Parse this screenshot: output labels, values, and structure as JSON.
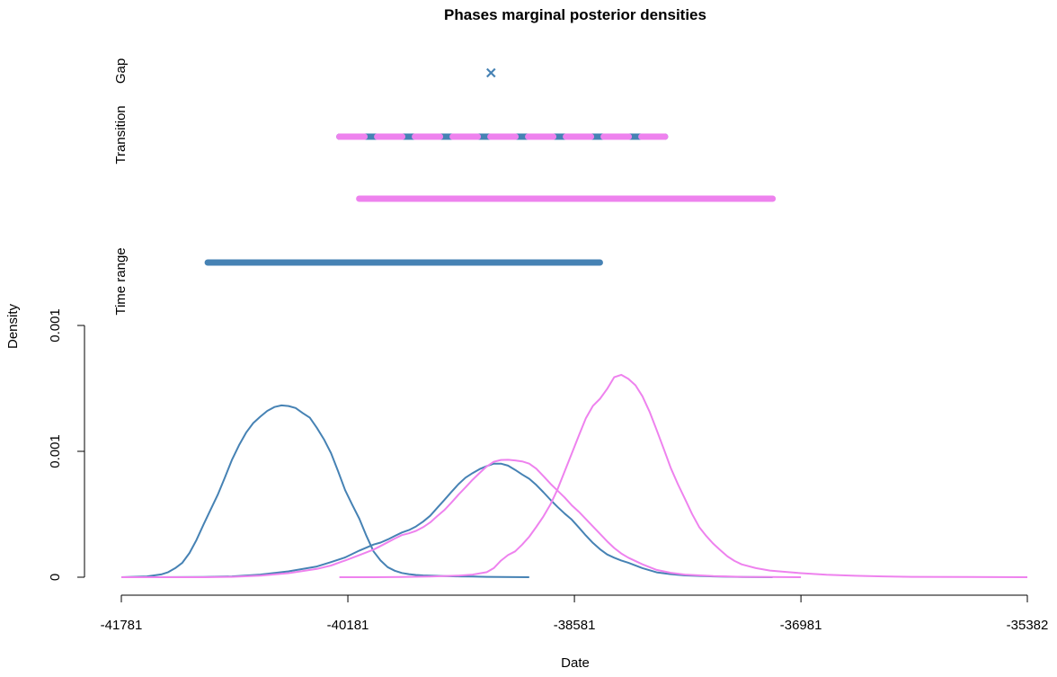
{
  "chart_data": {
    "type": "line",
    "title": "Phases marginal posterior densities",
    "xlabel": "Date",
    "ylabel": "Density",
    "xlim": [
      -41781,
      -35382
    ],
    "ylim": [
      0,
      0.00125
    ],
    "x_ticks": [
      -41781,
      -40181,
      -38581,
      -36981,
      -35382
    ],
    "x_tick_labels": [
      "-41781",
      "-40181",
      "-38581",
      "-36981",
      "-35382"
    ],
    "y_ticks": [
      0,
      0.000625,
      0.00125
    ],
    "y_tick_labels": [
      "0",
      "0.001",
      "0.001"
    ],
    "row_labels": {
      "gap": "Gap",
      "transition": "Transition",
      "time_range": "Time range"
    },
    "colors": {
      "phase_1": "#4682B4",
      "phase_2": "#EE82EE"
    },
    "gap": {
      "x": -39170,
      "color": "#4682B4",
      "marker": "x"
    },
    "transition": {
      "start": -40241,
      "end": -37941,
      "colors": [
        "#4682B4",
        "#EE82EE"
      ],
      "style": "dashed"
    },
    "time_range_bars": [
      {
        "series": "phase_2_range",
        "start": -40101,
        "end": -37181,
        "color": "#EE82EE"
      },
      {
        "series": "phase_1_range",
        "start": -41171,
        "end": -38401,
        "color": "#4682B4"
      }
    ],
    "series": [
      {
        "color": "#4682B4",
        "x": [
          -41781,
          -41600,
          -41500,
          -41450,
          -41400,
          -41350,
          -41300,
          -41250,
          -41200,
          -41150,
          -41100,
          -41050,
          -41000,
          -40950,
          -40900,
          -40850,
          -40800,
          -40750,
          -40700,
          -40650,
          -40600,
          -40550,
          -40500,
          -40450,
          -40400,
          -40350,
          -40300,
          -40250,
          -40200,
          -40150,
          -40100,
          -40050,
          -40000,
          -39950,
          -39900,
          -39850,
          -39800,
          -39750,
          -39700,
          -39650,
          -39600,
          -39500,
          -39400,
          -39300,
          -39200,
          -39100,
          -38900
        ],
        "y": [
          0,
          4e-06,
          1.4e-05,
          2.5e-05,
          4.5e-05,
          7.2e-05,
          0.00012,
          0.000185,
          0.000262,
          0.000336,
          0.00041,
          0.000495,
          0.000582,
          0.000655,
          0.000718,
          0.000765,
          0.000797,
          0.000826,
          0.000845,
          0.000853,
          0.00085,
          0.00084,
          0.000815,
          0.000792,
          0.000742,
          0.000685,
          0.000616,
          0.000526,
          0.000432,
          0.00036,
          0.00029,
          0.000205,
          0.000128,
          8.3e-05,
          5e-05,
          3.2e-05,
          2.1e-05,
          1.5e-05,
          1.1e-05,
          9e-06,
          8e-06,
          6e-06,
          4e-06,
          3e-06,
          2e-06,
          1e-06,
          0
        ]
      },
      {
        "color": "#4682B4",
        "x": [
          -41581,
          -41200,
          -41000,
          -40800,
          -40600,
          -40400,
          -40300,
          -40200,
          -40100,
          -40000,
          -39950,
          -39900,
          -39850,
          -39800,
          -39750,
          -39700,
          -39650,
          -39600,
          -39550,
          -39500,
          -39450,
          -39400,
          -39350,
          -39300,
          -39250,
          -39200,
          -39150,
          -39100,
          -39050,
          -39000,
          -38950,
          -38900,
          -38850,
          -38800,
          -38750,
          -38700,
          -38650,
          -38600,
          -38550,
          -38500,
          -38450,
          -38400,
          -38350,
          -38300,
          -38250,
          -38200,
          -38100,
          -38000,
          -37900,
          -37800,
          -37600,
          -37400,
          -37181
        ],
        "y": [
          0,
          1e-06,
          4e-06,
          1.3e-05,
          2.9e-05,
          5.3e-05,
          7.5e-05,
          9.8e-05,
          0.000132,
          0.000162,
          0.000172,
          0.000187,
          0.000205,
          0.000222,
          0.000234,
          0.000252,
          0.000276,
          0.000305,
          0.000344,
          0.000383,
          0.000423,
          0.000462,
          0.000494,
          0.000517,
          0.000537,
          0.000552,
          0.000564,
          0.000564,
          0.000554,
          0.000533,
          0.00051,
          0.000489,
          0.000458,
          0.000422,
          0.000384,
          0.000349,
          0.000316,
          0.000286,
          0.000247,
          0.000207,
          0.00017,
          0.000139,
          0.000113,
          9.7e-05,
          8.3e-05,
          7.2e-05,
          4.5e-05,
          2.4e-05,
          1.5e-05,
          9e-06,
          4e-06,
          1e-06,
          0
        ]
      },
      {
        "color": "#EE82EE",
        "x": [
          -41781,
          -41200,
          -41000,
          -40800,
          -40600,
          -40400,
          -40300,
          -40200,
          -40100,
          -40000,
          -39950,
          -39900,
          -39850,
          -39800,
          -39750,
          -39700,
          -39650,
          -39600,
          -39550,
          -39500,
          -39450,
          -39400,
          -39350,
          -39300,
          -39250,
          -39200,
          -39150,
          -39100,
          -39050,
          -39000,
          -38950,
          -38900,
          -38850,
          -38800,
          -38750,
          -38700,
          -38650,
          -38600,
          -38550,
          -38500,
          -38450,
          -38400,
          -38350,
          -38300,
          -38250,
          -38200,
          -38100,
          -38000,
          -37900,
          -37800,
          -37600,
          -37400,
          -37200,
          -36981
        ],
        "y": [
          0,
          0,
          2e-06,
          8e-06,
          2e-05,
          4.1e-05,
          5.8e-05,
          8.3e-05,
          0.00011,
          0.000137,
          0.000155,
          0.000173,
          0.000192,
          0.000209,
          0.000218,
          0.00023,
          0.000248,
          0.000272,
          0.000303,
          0.000333,
          0.00037,
          0.00041,
          0.000446,
          0.000484,
          0.000518,
          0.00055,
          0.000573,
          0.000582,
          0.000583,
          0.00058,
          0.000575,
          0.000564,
          0.000539,
          0.000502,
          0.000464,
          0.00043,
          0.000396,
          0.000357,
          0.000325,
          0.000289,
          0.000252,
          0.000215,
          0.000178,
          0.000145,
          0.000118,
          9.7e-05,
          6.4e-05,
          3.6e-05,
          2.2e-05,
          1.3e-05,
          6e-06,
          2e-06,
          1e-06,
          0
        ]
      },
      {
        "color": "#EE82EE",
        "x": [
          -40241,
          -40000,
          -39800,
          -39600,
          -39400,
          -39300,
          -39200,
          -39150,
          -39100,
          -39050,
          -39000,
          -38950,
          -38900,
          -38850,
          -38800,
          -38750,
          -38700,
          -38650,
          -38600,
          -38550,
          -38500,
          -38450,
          -38400,
          -38350,
          -38300,
          -38250,
          -38200,
          -38150,
          -38100,
          -38050,
          -38000,
          -37950,
          -37900,
          -37850,
          -37800,
          -37750,
          -37700,
          -37650,
          -37600,
          -37550,
          -37500,
          -37450,
          -37400,
          -37300,
          -37200,
          -37000,
          -36800,
          -36600,
          -36400,
          -36200,
          -35800,
          -35382
        ],
        "y": [
          0,
          0,
          1e-06,
          3e-06,
          8e-06,
          1.3e-05,
          2.5e-05,
          4.5e-05,
          8.2e-05,
          0.00011,
          0.000128,
          0.000162,
          0.000201,
          0.00025,
          0.000302,
          0.000362,
          0.000436,
          0.000525,
          0.000614,
          0.000703,
          0.000789,
          0.000851,
          0.000886,
          0.000935,
          0.000993,
          0.001005,
          0.000985,
          0.000953,
          0.000898,
          0.000822,
          0.000731,
          0.000637,
          0.000541,
          0.000462,
          0.000389,
          0.000314,
          0.000249,
          0.000205,
          0.000166,
          0.000134,
          0.000103,
          8.1e-05,
          6.4e-05,
          4.5e-05,
          3.3e-05,
          2.1e-05,
          1.2e-05,
          7e-06,
          4e-06,
          2e-06,
          1e-06,
          0
        ]
      }
    ]
  }
}
